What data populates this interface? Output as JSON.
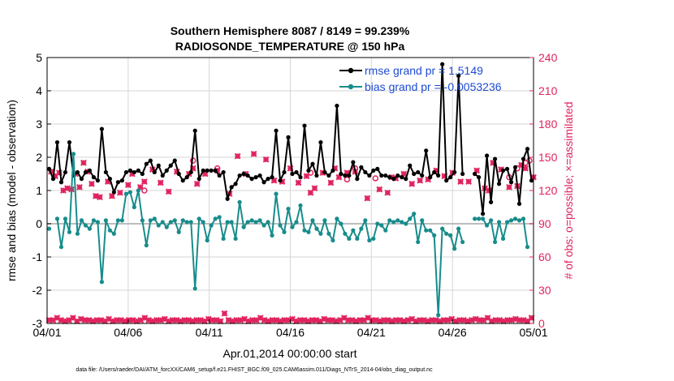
{
  "chart_data": {
    "type": "line",
    "title_line1": "Southern Hemisphere 8087 / 8149 = 99.239%",
    "title_line2": "RADIOSONDE_TEMPERATURE @ 150 hPa",
    "xlabel": "Apr.01,2014 00:00:00 start",
    "ylabel_left": "rmse and bias (model - observation)",
    "ylabel_right": "# of obs: o=possible; ×=assimilated",
    "footnote": "data file: /Users/raeder/DAI/ATM_forcXX/CAM6_setup/f.e21.FHIST_BGC.f09_025.CAM6assim.011/Diags_NTrS_2014-04/obs_diag_output.nc",
    "x_tick_labels": [
      "04/01",
      "04/06",
      "04/11",
      "04/16",
      "04/21",
      "04/26",
      "05/01"
    ],
    "x_tick_days": [
      0,
      5,
      10,
      15,
      20,
      25,
      30
    ],
    "xlim_days": [
      0,
      30
    ],
    "y_left_ticks": [
      "-3",
      "-2",
      "-1",
      "0",
      "1",
      "2",
      "3",
      "4",
      "5"
    ],
    "y_left_lim": [
      -3,
      5
    ],
    "y_right_ticks": [
      "0",
      "30",
      "60",
      "90",
      "120",
      "150",
      "180",
      "210",
      "240"
    ],
    "y_right_lim": [
      0,
      240
    ],
    "grid": true,
    "legend_location": "top-right",
    "colors": {
      "rmse": "#000000",
      "bias": "#188c8c",
      "obs": "#e0245e",
      "zero_line": "#bdbdbd",
      "grid": "#d6d6d6"
    },
    "x_units": "days since start (Apr.01,2014 00:00:00)",
    "series": [
      {
        "name": "rmse grand pr = 1.5149",
        "values": [
          1.65,
          1.35,
          2.45,
          1.25,
          1.55,
          2.45,
          1.45,
          1.55,
          1.35,
          1.55,
          1.6,
          1.4,
          1.3,
          2.85,
          1.55,
          1.35,
          0.95,
          1.25,
          1.3,
          1.55,
          1.6,
          1.55,
          1.6,
          1.5,
          1.8,
          1.9,
          1.55,
          1.75,
          1.45,
          1.6,
          1.75,
          1.9,
          1.5,
          1.3,
          1.4,
          1.55,
          2.8,
          1.35,
          1.6,
          1.6,
          1.6,
          1.6,
          1.45,
          1.55,
          0.75,
          1.1,
          1.2,
          1.45,
          1.5,
          1.45,
          1.35,
          1.4,
          1.45,
          1.25,
          1.35,
          1.4,
          2.8,
          1.3,
          1.55,
          2.6,
          1.5,
          1.55,
          1.4,
          2.95,
          1.6,
          1.8,
          1.45,
          2.45,
          1.55,
          1.45,
          1.6,
          3.55,
          1.5,
          1.45,
          1.45,
          1.85,
          1.35,
          1.7,
          1.55,
          1.45,
          1.6,
          1.65,
          1.45,
          1.45,
          1.4,
          1.35,
          1.45,
          1.4,
          1.35,
          1.75,
          1.5,
          1.55,
          1.45,
          2.2,
          1.4,
          1.55,
          1.45,
          4.8,
          1.3,
          1.4,
          1.55,
          4.45,
          1.5,
          null,
          null,
          1.5,
          1.4,
          0.3,
          2.05,
          0.65,
          1.95,
          1.2,
          1.6,
          1.65,
          1.25,
          1.7,
          0.6,
          1.95,
          2.25,
          1.3
        ]
      },
      {
        "name": "bias grand pr = -0.0053236",
        "values": [
          -0.15,
          null,
          0.15,
          -0.7,
          0.15,
          -0.25,
          2.1,
          -0.3,
          0.1,
          -0.05,
          -0.15,
          0.1,
          0.05,
          -1.75,
          0.1,
          -0.2,
          -0.3,
          0.1,
          0.1,
          0.9,
          0.95,
          0.5,
          1.0,
          0.1,
          -0.65,
          0.1,
          0.15,
          -0.05,
          0.05,
          -0.1,
          0.05,
          0.1,
          -0.25,
          0.1,
          0.05,
          0.05,
          -1.95,
          0.15,
          0.05,
          -0.5,
          -0.05,
          0.15,
          0.2,
          -0.45,
          0.05,
          0.05,
          -0.45,
          0.65,
          -0.1,
          0.05,
          0.1,
          0.05,
          0.1,
          -0.05,
          0.05,
          -0.35,
          0.9,
          -0.05,
          -0.25,
          0.45,
          -0.1,
          0.05,
          0.55,
          -0.2,
          -0.25,
          0.1,
          -0.15,
          -0.3,
          0.1,
          -0.3,
          -0.5,
          0.15,
          0.0,
          -0.3,
          -0.45,
          -0.2,
          -0.45,
          -0.15,
          0.1,
          -0.5,
          -0.45,
          0.0,
          -0.05,
          -0.2,
          0.1,
          0.05,
          0.1,
          0.05,
          0.0,
          0.15,
          0.3,
          -0.55,
          0.1,
          -0.2,
          -0.2,
          -0.35,
          -2.75,
          -0.15,
          -0.3,
          -0.35,
          -0.75,
          -0.15,
          -0.55,
          null,
          null,
          0.15,
          0.15,
          0.15,
          -0.05,
          0.1,
          -0.55,
          0.05,
          -0.45,
          0.05,
          0.1,
          0.15,
          0.1,
          0.15,
          -0.7,
          null
        ]
      }
    ],
    "obs_assimilated_days": [
      0.25,
      0.5,
      0.75,
      1.0,
      1.25,
      1.5,
      1.75,
      2.0,
      2.25,
      2.5,
      2.75,
      3.0,
      3.25,
      3.75,
      4.0,
      4.5,
      5.0,
      5.25,
      5.75,
      6.0,
      6.5,
      7.0,
      7.5,
      8.0,
      8.75,
      9.0,
      9.25,
      9.75,
      10.5,
      11.25,
      11.75,
      12.25,
      12.75,
      13.5,
      14.0,
      14.5,
      15.0,
      15.5,
      16.0,
      16.25,
      16.5,
      17.0,
      17.5,
      17.75,
      18.0,
      18.5,
      19.0,
      19.75,
      20.5,
      21.0,
      21.25,
      21.5,
      22.0,
      22.5,
      23.0,
      23.5,
      24.0,
      24.5,
      25.0,
      25.5,
      26.0,
      26.5,
      27.0,
      27.25,
      27.5,
      28.0,
      28.5,
      29.0,
      29.25,
      29.5,
      30.0
    ],
    "obs_assimilated_counts": [
      137,
      133,
      136,
      120,
      122,
      121,
      135,
      123,
      145,
      137,
      126,
      115,
      114,
      128,
      115,
      118,
      125,
      135,
      123,
      128,
      139,
      127,
      119,
      137,
      135,
      140,
      126,
      135,
      138,
      117,
      151,
      135,
      153,
      148,
      129,
      128,
      140,
      127,
      133,
      118,
      122,
      136,
      127,
      140,
      132,
      136,
      137,
      113,
      121,
      118,
      132,
      131,
      135,
      126,
      129,
      130,
      138,
      133,
      136,
      128,
      128,
      138,
      122,
      120,
      145,
      139,
      123,
      124,
      143,
      140,
      132
    ],
    "obs_possible_days": [
      6.0,
      9.0,
      10.5,
      16.25,
      18.5,
      19.0,
      20.25,
      28.5,
      29.0,
      29.5,
      29.75
    ],
    "obs_possible_counts": [
      120,
      147,
      140,
      136,
      130,
      140,
      131,
      132,
      140,
      145,
      147
    ],
    "obs_bottom_counts": [
      3,
      3,
      5,
      3,
      2,
      3,
      5,
      2,
      4,
      3,
      3,
      2,
      3,
      3,
      2,
      4,
      2,
      3,
      3,
      2,
      3,
      3,
      2,
      3,
      5,
      3,
      2,
      3,
      3,
      4,
      2,
      3,
      3,
      2,
      3,
      3,
      2,
      3,
      3,
      2,
      4,
      3,
      3,
      2,
      9,
      3,
      2,
      3,
      3,
      4,
      2,
      3,
      3,
      5,
      3,
      2,
      3,
      3,
      2,
      3,
      3,
      4,
      2,
      3,
      3,
      2,
      3,
      3,
      2,
      4,
      3,
      3,
      2,
      3,
      5,
      3,
      3,
      2,
      3,
      3,
      5,
      3,
      3,
      2,
      3,
      3,
      2,
      3,
      3,
      2,
      3,
      4,
      2,
      3,
      3,
      2,
      3,
      3,
      2,
      3,
      3,
      4,
      2,
      3,
      3,
      2,
      3,
      4,
      3,
      3,
      5,
      2,
      3,
      3,
      2,
      3,
      3,
      4,
      3,
      3,
      2,
      5
    ]
  }
}
